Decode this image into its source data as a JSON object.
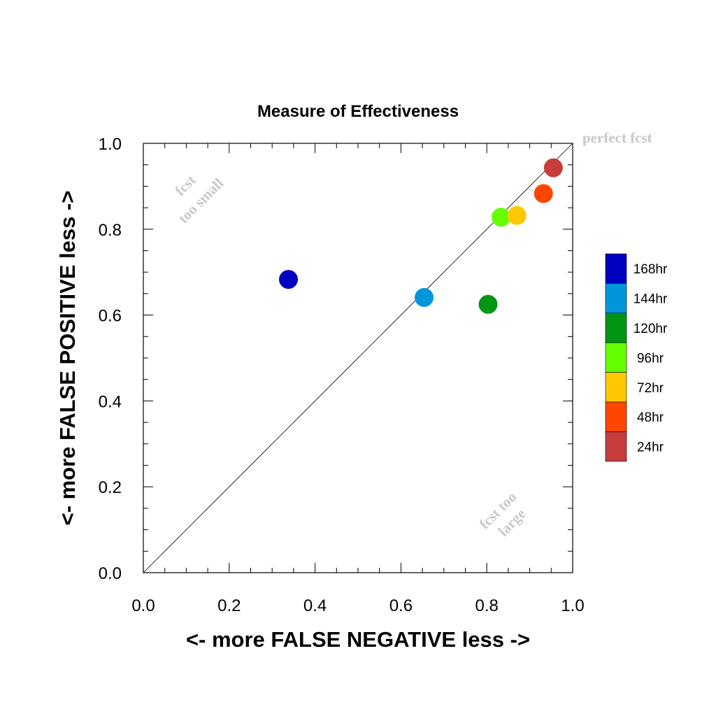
{
  "chart_data": {
    "type": "scatter",
    "title": "Measure of Effectiveness",
    "xlabel": "<- more   FALSE NEGATIVE   less ->",
    "ylabel": "<- more   FALSE POSITIVE   less ->",
    "xlim": [
      0.0,
      1.0
    ],
    "ylim": [
      0.0,
      1.0
    ],
    "xticks": [
      "0.0",
      "0.2",
      "0.4",
      "0.6",
      "0.8",
      "1.0"
    ],
    "yticks": [
      "0.0",
      "0.2",
      "0.4",
      "0.6",
      "0.8",
      "1.0"
    ],
    "grid": false,
    "reference_line": "diagonal",
    "legend_position": "right",
    "annotations": {
      "perfect": "perfect fcst",
      "small_1": "fcst",
      "small_2": "too small",
      "large_1": "fcst too",
      "large_2": "large"
    },
    "series": [
      {
        "name": "168hr",
        "color": "#0000c0",
        "x": 0.338,
        "y": 0.683
      },
      {
        "name": "144hr",
        "color": "#0096dc",
        "x": 0.654,
        "y": 0.641
      },
      {
        "name": "120hr",
        "color": "#009614",
        "x": 0.803,
        "y": 0.625
      },
      {
        "name": "96hr",
        "color": "#64ff00",
        "x": 0.833,
        "y": 0.828
      },
      {
        "name": "72hr",
        "color": "#ffc800",
        "x": 0.87,
        "y": 0.832
      },
      {
        "name": "48hr",
        "color": "#ff4600",
        "x": 0.932,
        "y": 0.883
      },
      {
        "name": "24hr",
        "color": "#c83c3c",
        "x": 0.955,
        "y": 0.943
      }
    ]
  }
}
